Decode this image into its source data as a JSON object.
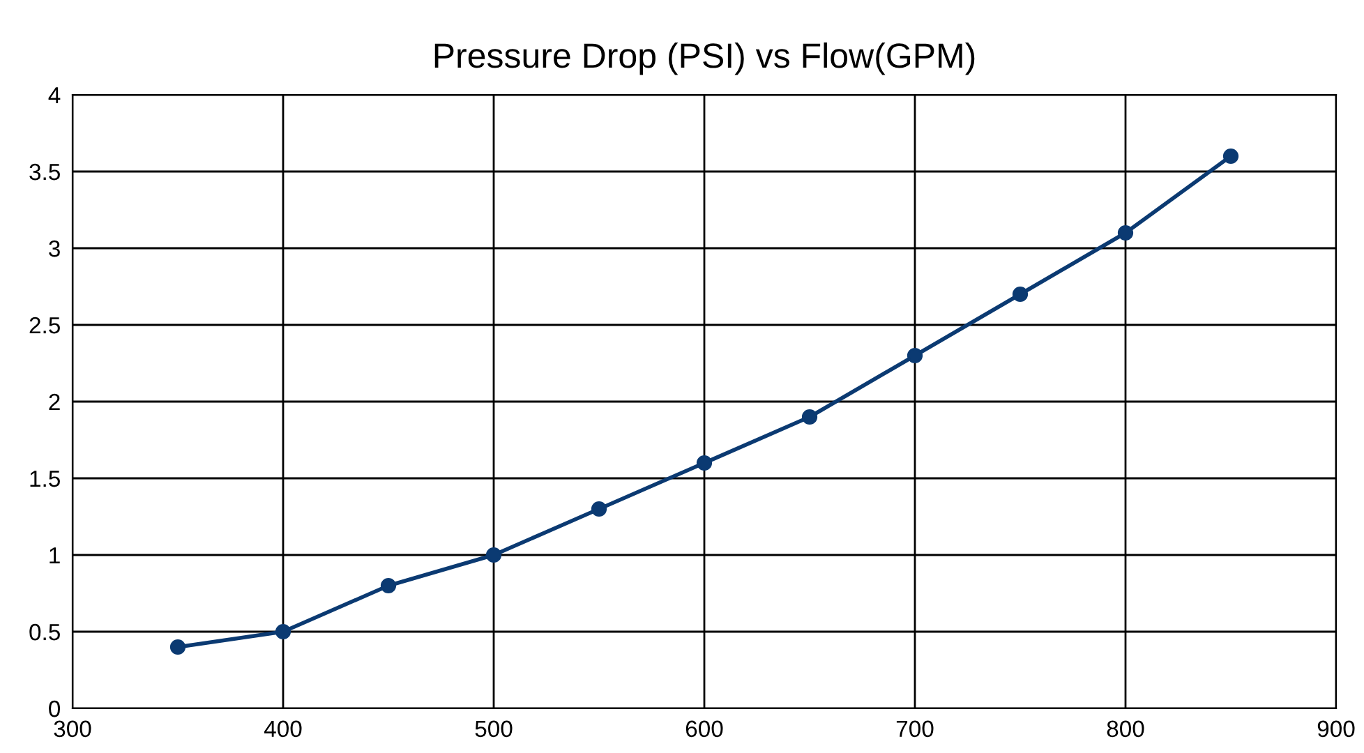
{
  "chart_data": {
    "type": "line",
    "title": "Pressure Drop (PSI) vs Flow(GPM)",
    "x": [
      350,
      400,
      450,
      500,
      550,
      600,
      650,
      700,
      750,
      800,
      850
    ],
    "series": [
      {
        "color": "#0b3a72",
        "values": [
          0.4,
          0.5,
          0.8,
          1.0,
          1.3,
          1.6,
          1.9,
          2.3,
          2.7,
          3.1,
          3.6
        ]
      }
    ],
    "xlim": [
      300,
      900
    ],
    "xticks": [
      300,
      400,
      500,
      600,
      700,
      800,
      900
    ],
    "ylim": [
      0,
      4
    ],
    "yticks": [
      0,
      0.5,
      1,
      1.5,
      2,
      2.5,
      3,
      3.5,
      4
    ],
    "grid": true,
    "marker": "circle",
    "line_style": "solid",
    "legend": false
  }
}
